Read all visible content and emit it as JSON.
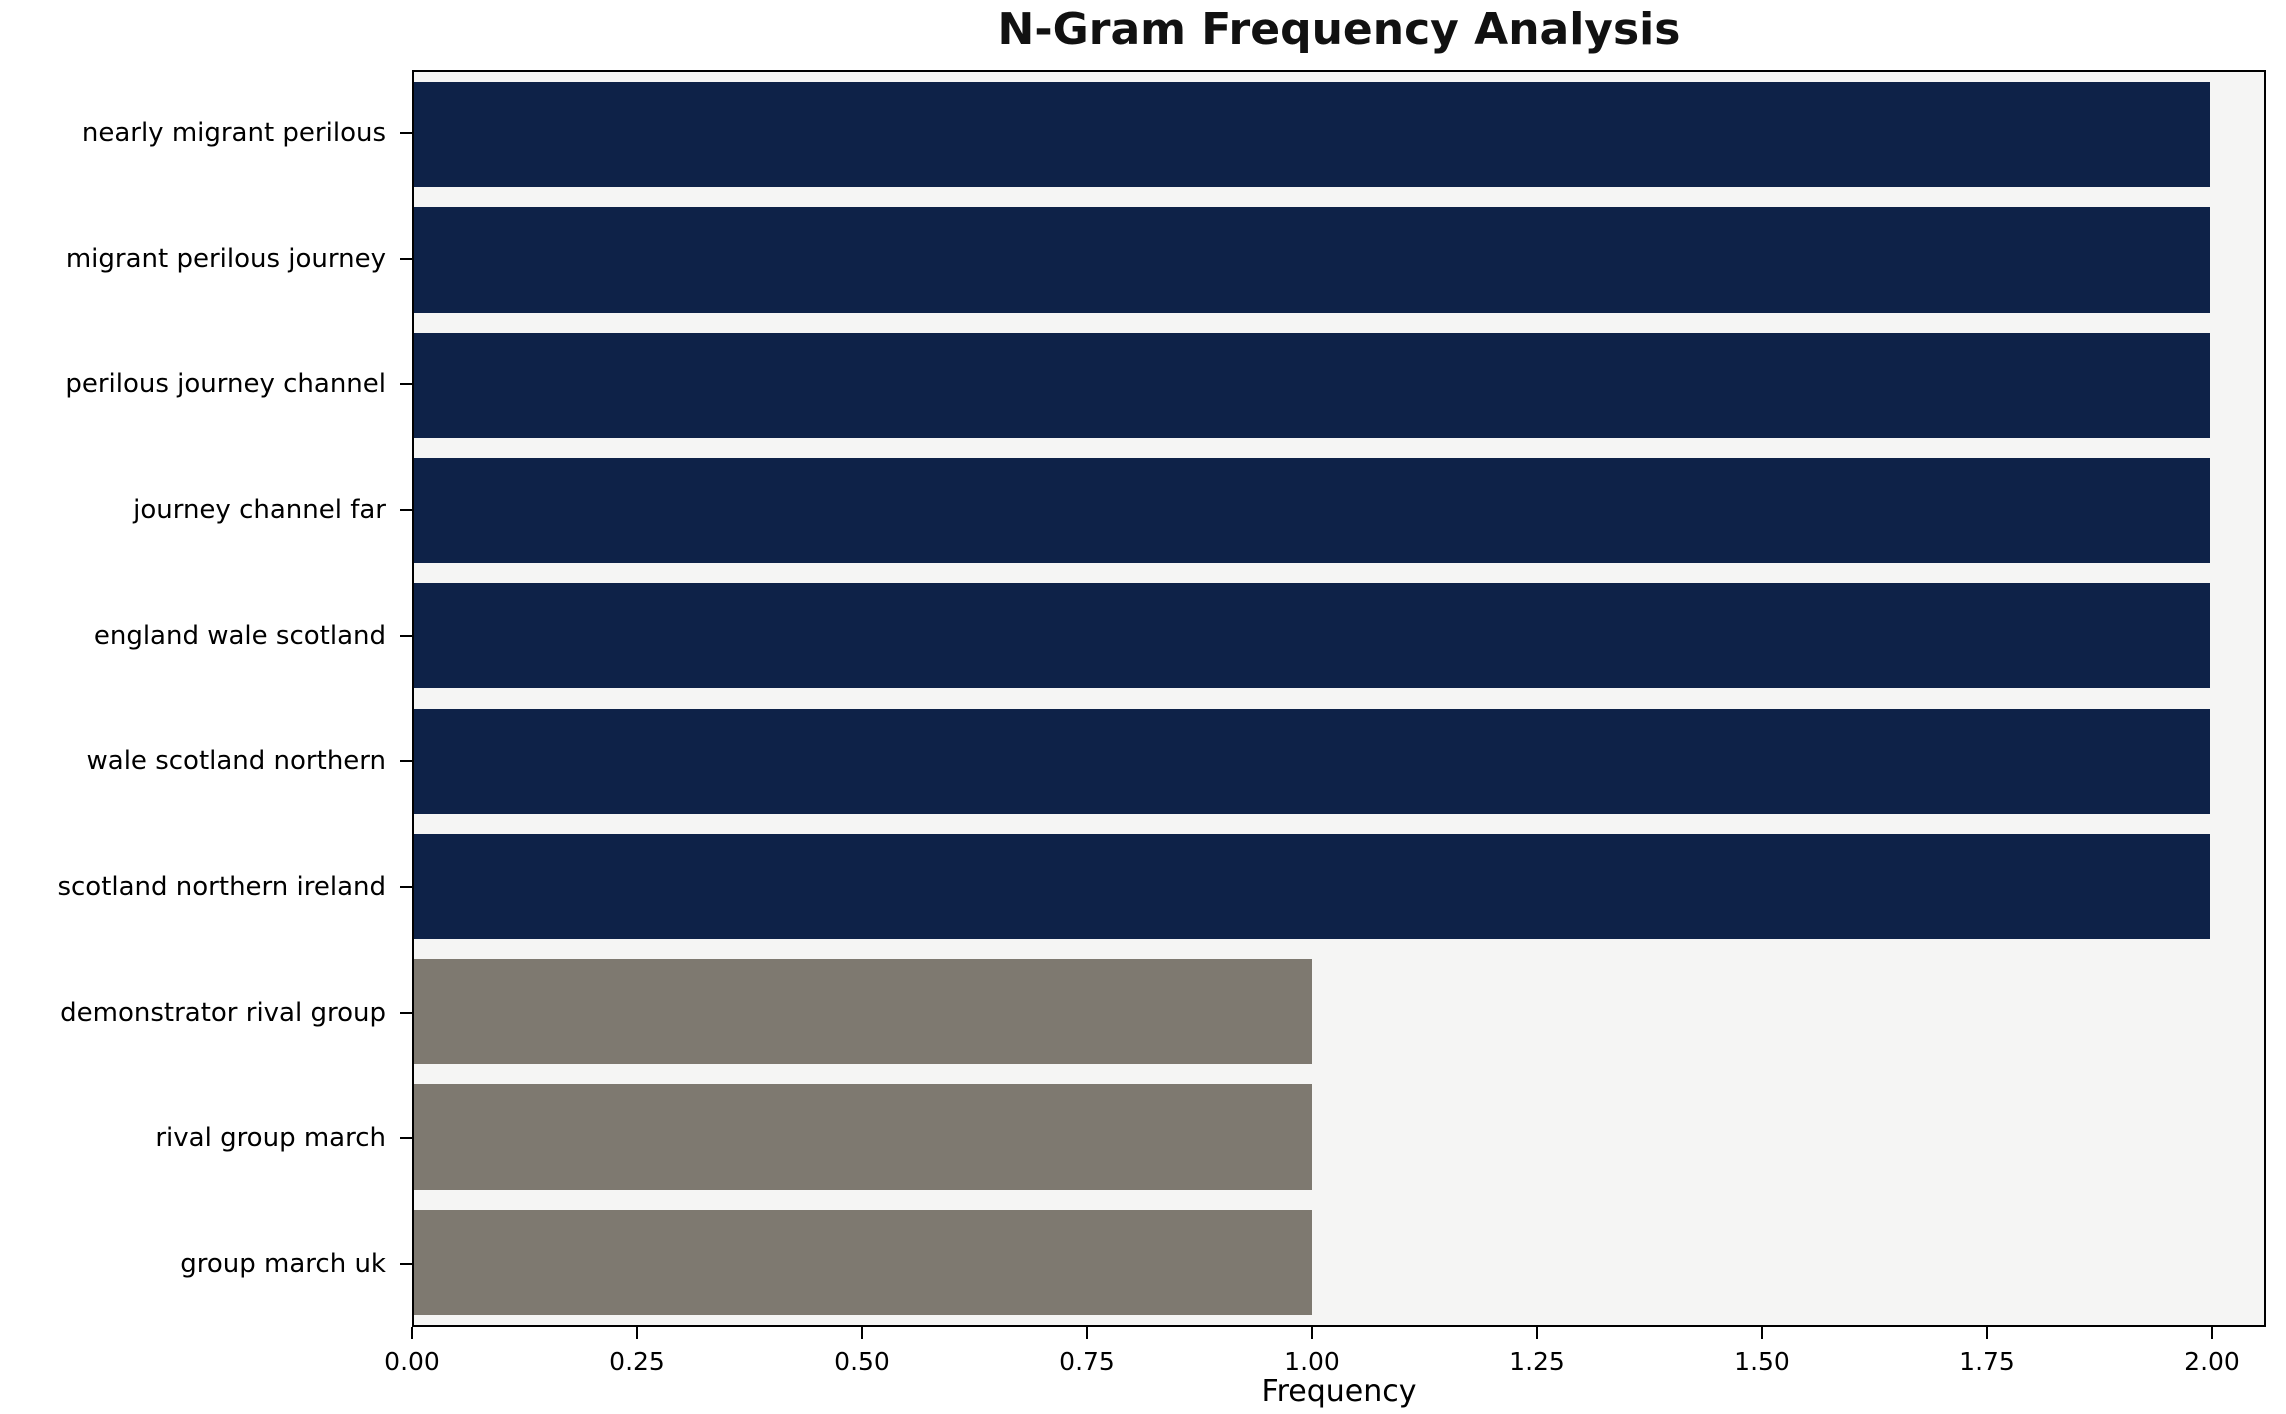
{
  "title": "N-Gram Frequency Analysis",
  "background_color": "#ffffff",
  "plot_background_color": "#f5f5f4",
  "chart_data": {
    "type": "bar",
    "orientation": "horizontal",
    "title": "N-Gram Frequency Analysis",
    "xlabel": "Frequency",
    "ylabel": "",
    "categories": [
      "nearly migrant perilous",
      "migrant perilous journey",
      "perilous journey channel",
      "journey channel far",
      "england wale scotland",
      "wale scotland northern",
      "scotland northern ireland",
      "demonstrator rival group",
      "rival group march",
      "group march uk"
    ],
    "values": [
      2,
      2,
      2,
      2,
      2,
      2,
      2,
      1,
      1,
      1
    ],
    "bar_colors": [
      "#0e2248",
      "#0e2248",
      "#0e2248",
      "#0e2248",
      "#0e2248",
      "#0e2248",
      "#0e2248",
      "#7e7970",
      "#7e7970",
      "#7e7970"
    ],
    "xlim": [
      0,
      2.06
    ],
    "xticks": [
      0,
      0.25,
      0.5,
      0.75,
      1.0,
      1.25,
      1.5,
      1.75,
      2.0
    ],
    "xtick_labels": [
      "0.00",
      "0.25",
      "0.50",
      "0.75",
      "1.00",
      "1.25",
      "1.50",
      "1.75",
      "2.00"
    ],
    "grid": false,
    "legend": null
  }
}
